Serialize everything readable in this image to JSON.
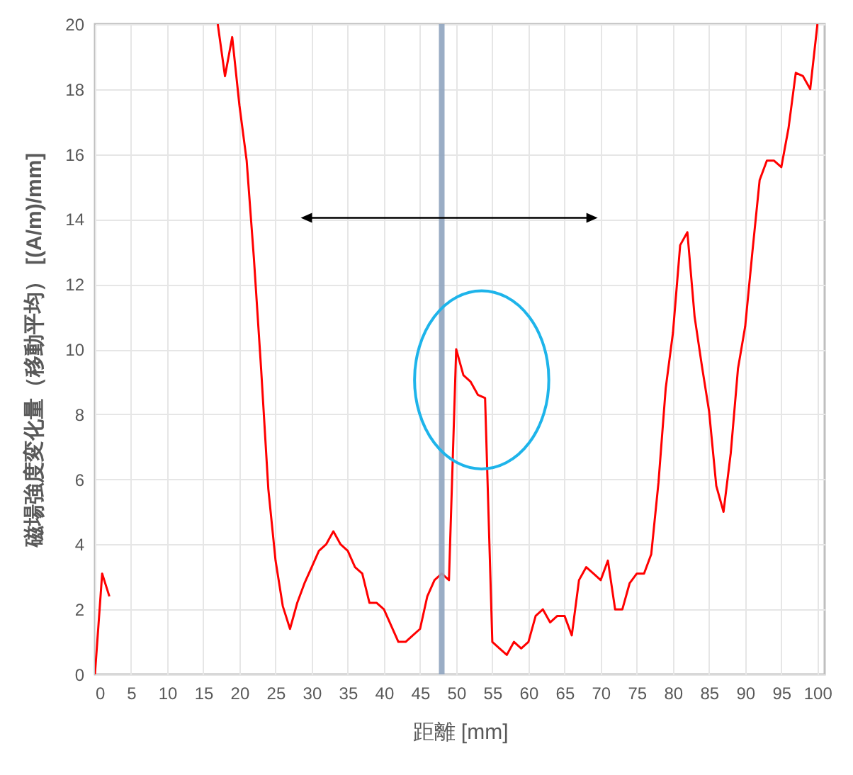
{
  "chart_data": {
    "type": "line",
    "xlabel": "距離 [mm]",
    "ylabel": "磁場強度変化量（移動平均） [(A/m)/mm]",
    "x": [
      0,
      1,
      2,
      3,
      4,
      5,
      6,
      7,
      8,
      9,
      10,
      11,
      12,
      13,
      14,
      15,
      16,
      17,
      18,
      19,
      20,
      21,
      22,
      23,
      24,
      25,
      26,
      27,
      28,
      29,
      30,
      31,
      32,
      33,
      34,
      35,
      36,
      37,
      38,
      39,
      40,
      41,
      42,
      43,
      44,
      45,
      46,
      47,
      48,
      49,
      50,
      51,
      52,
      53,
      54,
      55,
      56,
      57,
      58,
      59,
      60,
      61,
      62,
      63,
      64,
      65,
      66,
      67,
      68,
      69,
      70,
      71,
      72,
      73,
      74,
      75,
      76,
      77,
      78,
      79,
      80,
      81,
      82,
      83,
      84,
      85,
      86,
      87,
      88,
      89,
      90,
      91,
      92,
      93,
      94,
      95,
      96,
      97,
      98,
      99,
      100
    ],
    "series": [
      {
        "color": "#ff0000",
        "values": [
          0,
          3.1,
          2.4,
          null,
          null,
          null,
          null,
          null,
          null,
          null,
          null,
          null,
          null,
          null,
          null,
          null,
          null,
          20,
          18.4,
          19.6,
          17.5,
          15.8,
          12.8,
          9.4,
          5.7,
          3.5,
          2.1,
          1.4,
          2.2,
          2.8,
          3.3,
          3.8,
          4.0,
          4.4,
          4.0,
          3.8,
          3.3,
          3.1,
          2.2,
          2.2,
          2.0,
          1.5,
          1.0,
          1.0,
          1.2,
          1.4,
          2.4,
          2.9,
          3.1,
          2.9,
          10.0,
          9.2,
          9.0,
          8.6,
          8.5,
          1.0,
          0.8,
          0.6,
          1.0,
          0.8,
          1.0,
          1.8,
          2.0,
          1.6,
          1.8,
          1.8,
          1.2,
          2.9,
          3.3,
          3.1,
          2.9,
          3.5,
          2.0,
          2.0,
          2.8,
          3.1,
          3.1,
          3.7,
          5.9,
          8.8,
          10.5,
          13.2,
          13.6,
          11.0,
          9.5,
          8.1,
          5.8,
          5.0,
          6.8,
          9.4,
          10.7,
          13.0,
          15.2,
          15.8,
          15.8,
          15.6,
          16.8,
          18.5,
          18.4,
          18.0,
          20
        ]
      }
    ],
    "xlim": [
      0,
      101
    ],
    "ylim": [
      0,
      20
    ],
    "xticks": [
      0,
      5,
      10,
      15,
      20,
      25,
      30,
      35,
      40,
      45,
      50,
      55,
      60,
      65,
      70,
      75,
      80,
      85,
      90,
      95,
      100
    ],
    "yticks": [
      0,
      2,
      4,
      6,
      8,
      10,
      12,
      14,
      16,
      18,
      20
    ],
    "grid": true,
    "ref_lines": [
      {
        "axis": "x",
        "value": 48,
        "color": "#8fa4bf"
      }
    ]
  }
}
